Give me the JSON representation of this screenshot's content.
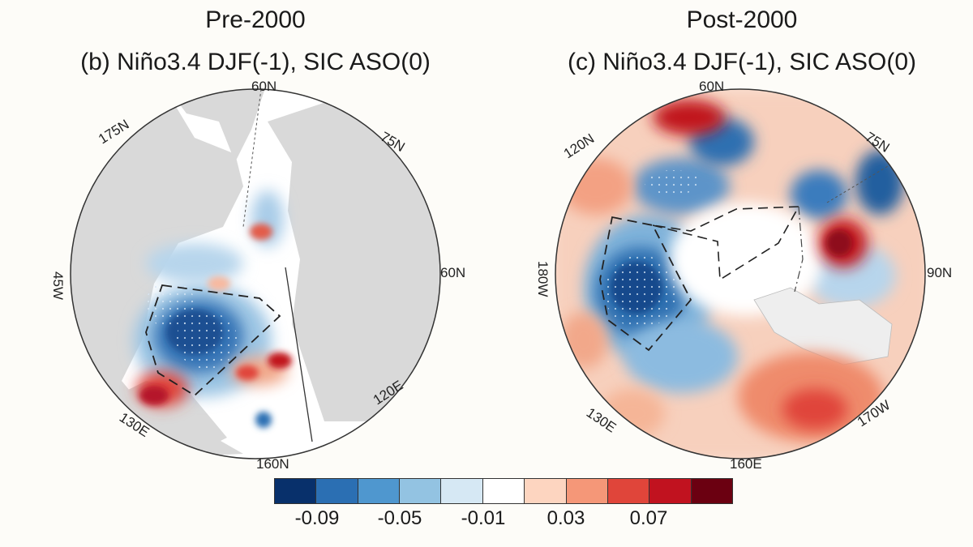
{
  "panels": [
    {
      "title": "Pre-2000",
      "subtitle": "(b) Niño3.4 DJF(-1), SIC ASO(0)",
      "labels": {
        "top": "60N",
        "upper_left": "175N",
        "upper_right": "75N",
        "left": "45W",
        "right": "60N",
        "lower_left": "130E",
        "lower_right": "120E",
        "bottom": "160N"
      }
    },
    {
      "title": "Post-2000",
      "subtitle": "(c) Niño3.4 DJF(-1), SIC ASO(0)",
      "labels": {
        "top": "60N",
        "upper_left": "120N",
        "upper_right": "75N",
        "left": "180W",
        "right": "90N",
        "lower_left": "130E",
        "lower_right": "170W",
        "bottom": "160E"
      }
    }
  ],
  "colorbar": {
    "colors": [
      "#08306b",
      "#2b6fb3",
      "#4f97cf",
      "#93c3e2",
      "#d6e8f4",
      "#ffffff",
      "#fdd5c0",
      "#f59778",
      "#e0453a",
      "#c1121f",
      "#6b0011"
    ],
    "tick_labels": [
      "-0.09",
      "-0.05",
      "-0.01",
      "0.03",
      "0.07"
    ]
  }
}
